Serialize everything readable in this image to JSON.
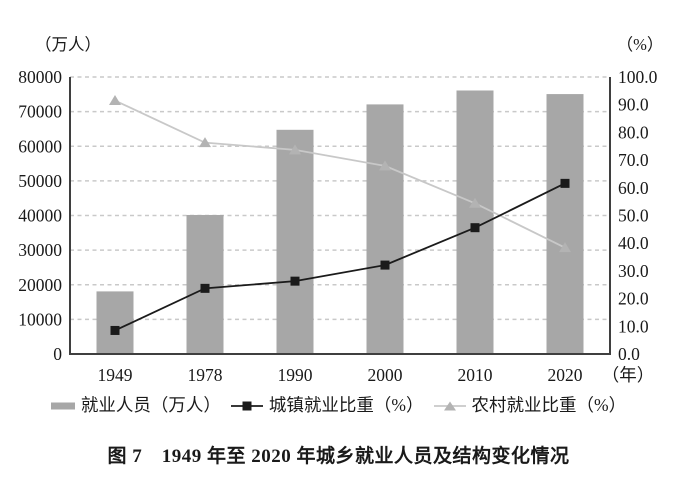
{
  "caption": "图 7　1949 年至 2020 年城乡就业人员及结构变化情况",
  "chart_data": {
    "type": "bar+line",
    "categories": [
      "1949",
      "1978",
      "1990",
      "2000",
      "2010",
      "2020"
    ],
    "series": [
      {
        "name": "就业人员（万人）",
        "kind": "bar",
        "axis": "left",
        "color": "#a7a7a7",
        "values": [
          18082,
          40152,
          64749,
          72085,
          76105,
          75064
        ]
      },
      {
        "name": "城镇就业比重（%）",
        "kind": "line",
        "axis": "right",
        "marker": "square",
        "color": "#1b1b1b",
        "marker_color": "#1b1b1b",
        "values": [
          8.5,
          23.7,
          26.3,
          32.1,
          45.6,
          61.6
        ]
      },
      {
        "name": "农村就业比重（%）",
        "kind": "line",
        "axis": "right",
        "marker": "triangle",
        "color": "#c8c8c8",
        "marker_color": "#b3b3b3",
        "values": [
          91.5,
          76.3,
          73.7,
          67.9,
          54.4,
          38.4
        ]
      }
    ],
    "left_axis": {
      "unit_label": "（万人）",
      "min": 0,
      "max": 80000,
      "step": 10000,
      "tick_labels": [
        "0",
        "10000",
        "20000",
        "30000",
        "40000",
        "50000",
        "60000",
        "70000",
        "80000"
      ]
    },
    "right_axis": {
      "unit_label": "（%）",
      "min": 0,
      "max": 100,
      "step": 10,
      "tick_labels": [
        "0.0",
        "10.0",
        "20.0",
        "30.0",
        "40.0",
        "50.0",
        "60.0",
        "70.0",
        "80.0",
        "90.0",
        "100.0"
      ]
    },
    "x_axis": {
      "unit_label": "（年）",
      "tick_labels": [
        "1949",
        "1978",
        "1990",
        "2000",
        "2010",
        "2020"
      ]
    },
    "grid": {
      "style": "dashed-horizontal",
      "color": "#c9c9c9"
    },
    "axis_color": "#3f3f3f",
    "legend_position": "bottom"
  }
}
